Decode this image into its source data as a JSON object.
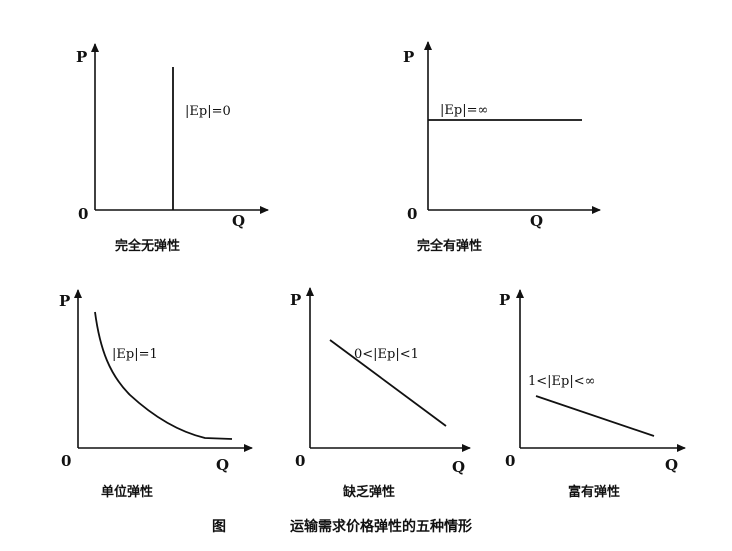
{
  "figure": {
    "label": "图",
    "title": "运输需求价格弹性的五种情形"
  },
  "chart_data": [
    {
      "type": "line",
      "caption": "完全无弹性",
      "xlabel": "Q",
      "ylabel": "P",
      "origin": "0",
      "annotation": "|Ep|=0",
      "curve": "vertical"
    },
    {
      "type": "line",
      "caption": "完全有弹性",
      "xlabel": "Q",
      "ylabel": "P",
      "origin": "0",
      "annotation": "|Ep|=∞",
      "curve": "horizontal"
    },
    {
      "type": "line",
      "caption": "单位弹性",
      "xlabel": "Q",
      "ylabel": "P",
      "origin": "0",
      "annotation": "|Ep|=1",
      "curve": "hyperbola"
    },
    {
      "type": "line",
      "caption": "缺乏弹性",
      "xlabel": "Q",
      "ylabel": "P",
      "origin": "0",
      "annotation": "0<|Ep|<1",
      "curve": "steep-downward"
    },
    {
      "type": "line",
      "caption": "富有弹性",
      "xlabel": "Q",
      "ylabel": "P",
      "origin": "0",
      "annotation": "1<|Ep|<∞",
      "curve": "flat-downward"
    }
  ]
}
